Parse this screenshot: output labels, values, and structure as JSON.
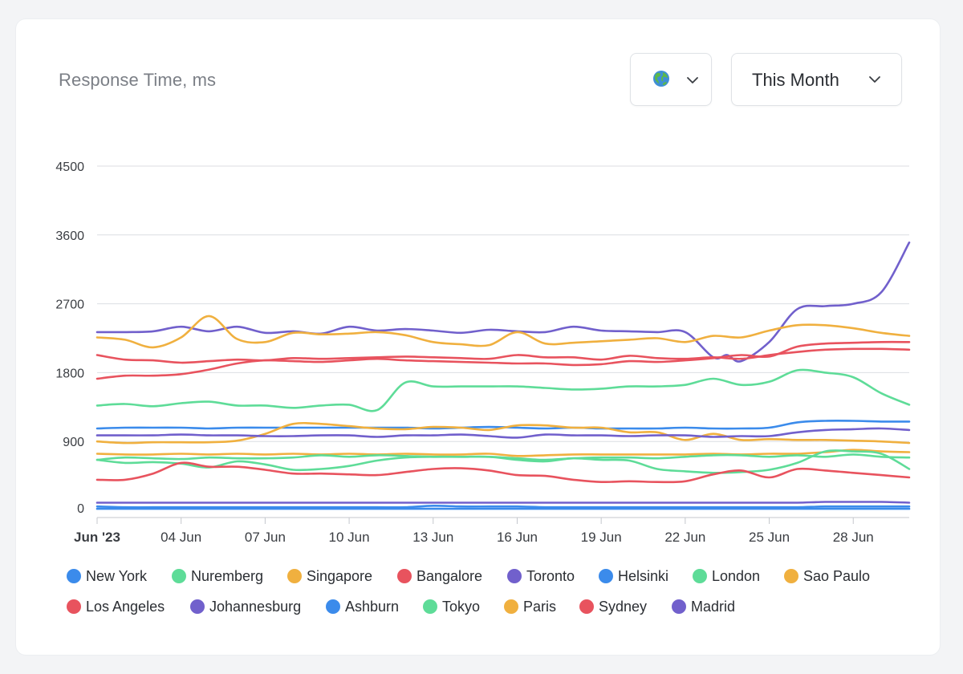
{
  "header": {
    "region_icon": "globe-icon",
    "period_label": "This Month"
  },
  "colors": {
    "blue": "#3b8beb",
    "green": "#5edc98",
    "orange": "#f0b03f",
    "red": "#e8535e",
    "purple": "#7160cc"
  },
  "chart_data": {
    "type": "line",
    "title": "Response Time, ms",
    "y_ticks": [
      "4500",
      "3600",
      "2700",
      "1800",
      "900",
      "0"
    ],
    "y_tick_values": [
      4500,
      3600,
      2700,
      1800,
      900,
      0
    ],
    "ylim": [
      0,
      4500
    ],
    "x_tick_labels": [
      "Jun '23",
      "04 Jun",
      "07 Jun",
      "10 Jun",
      "13 Jun",
      "16 Jun",
      "19 Jun",
      "22 Jun",
      "25 Jun",
      "28 Jun"
    ],
    "x_tick_days": [
      1,
      4,
      7,
      10,
      13,
      16,
      19,
      22,
      25,
      28
    ],
    "x_range_days": [
      1,
      29.999
    ],
    "grid": "horizontal",
    "legend_position": "bottom",
    "legend": [
      {
        "name": "New York",
        "color": "#3b8beb"
      },
      {
        "name": "Nuremberg",
        "color": "#5edc98"
      },
      {
        "name": "Singapore",
        "color": "#f0b03f"
      },
      {
        "name": "Bangalore",
        "color": "#e8535e"
      },
      {
        "name": "Toronto",
        "color": "#7160cc"
      },
      {
        "name": "Helsinki",
        "color": "#3b8beb"
      },
      {
        "name": "London",
        "color": "#5edc98"
      },
      {
        "name": "Sao Paulo",
        "color": "#f0b03f"
      },
      {
        "name": "Los Angeles",
        "color": "#e8535e"
      },
      {
        "name": "Johannesburg",
        "color": "#7160cc"
      },
      {
        "name": "Ashburn",
        "color": "#3b8beb"
      },
      {
        "name": "Tokyo",
        "color": "#5edc98"
      },
      {
        "name": "Paris",
        "color": "#f0b03f"
      },
      {
        "name": "Sydney",
        "color": "#e8535e"
      },
      {
        "name": "Madrid",
        "color": "#7160cc"
      }
    ],
    "series": [
      {
        "color": "#7160cc",
        "x": [
          1,
          2,
          3,
          4,
          5,
          6,
          7,
          8,
          9,
          10,
          11,
          12,
          13,
          14,
          15,
          16,
          17,
          18,
          19,
          20,
          21,
          22,
          23,
          23.5,
          24,
          25,
          26,
          27,
          28,
          29,
          30
        ],
        "y": [
          2330,
          2330,
          2340,
          2400,
          2340,
          2400,
          2320,
          2340,
          2310,
          2400,
          2350,
          2370,
          2350,
          2320,
          2360,
          2340,
          2330,
          2400,
          2350,
          2340,
          2330,
          2330,
          2000,
          2030,
          1950,
          2200,
          2630,
          2670,
          2700,
          2850,
          3500
        ]
      },
      {
        "color": "#f0b03f",
        "x": [
          1,
          2,
          3,
          4,
          5,
          6,
          7,
          8,
          9,
          10,
          11,
          12,
          13,
          14,
          15,
          16,
          17,
          18,
          19,
          20,
          21,
          22,
          23,
          24,
          25,
          26,
          27,
          28,
          29,
          30
        ],
        "y": [
          2260,
          2230,
          2130,
          2260,
          2540,
          2240,
          2200,
          2320,
          2300,
          2310,
          2330,
          2290,
          2200,
          2170,
          2160,
          2330,
          2180,
          2190,
          2210,
          2230,
          2250,
          2200,
          2280,
          2260,
          2350,
          2420,
          2420,
          2380,
          2320,
          2280
        ]
      },
      {
        "color": "#e8535e",
        "x": [
          1,
          2,
          3,
          4,
          5,
          6,
          7,
          8,
          9,
          10,
          11,
          12,
          13,
          14,
          15,
          16,
          17,
          18,
          19,
          20,
          21,
          22,
          23,
          24,
          25,
          26,
          27,
          28,
          29,
          30
        ],
        "y": [
          2030,
          1970,
          1960,
          1930,
          1950,
          1970,
          1960,
          1990,
          1980,
          1990,
          2000,
          2010,
          2000,
          1990,
          1980,
          2030,
          2000,
          2000,
          1970,
          2020,
          1990,
          1980,
          2000,
          1980,
          2030,
          2070,
          2100,
          2110,
          2110,
          2100
        ]
      },
      {
        "color": "#e8535e",
        "x": [
          1,
          2,
          3,
          4,
          5,
          6,
          7,
          8,
          9,
          10,
          11,
          12,
          13,
          14,
          15,
          16,
          17,
          18,
          19,
          20,
          21,
          22,
          23,
          24,
          25,
          26,
          27,
          28,
          29,
          30
        ],
        "y": [
          1720,
          1760,
          1760,
          1780,
          1840,
          1920,
          1960,
          1950,
          1940,
          1960,
          1980,
          1960,
          1950,
          1940,
          1930,
          1920,
          1920,
          1900,
          1910,
          1950,
          1940,
          1960,
          1990,
          2030,
          2010,
          2140,
          2180,
          2190,
          2200,
          2200
        ]
      },
      {
        "color": "#5edc98",
        "x": [
          1,
          2,
          3,
          4,
          5,
          6,
          7,
          8,
          9,
          10,
          11,
          12,
          13,
          14,
          15,
          16,
          17,
          18,
          19,
          20,
          21,
          22,
          23,
          24,
          25,
          26,
          27,
          28,
          29,
          30
        ],
        "y": [
          1370,
          1390,
          1360,
          1400,
          1420,
          1370,
          1370,
          1340,
          1370,
          1380,
          1310,
          1670,
          1620,
          1620,
          1620,
          1620,
          1600,
          1580,
          1590,
          1620,
          1620,
          1640,
          1720,
          1640,
          1680,
          1830,
          1800,
          1740,
          1530,
          1380
        ]
      },
      {
        "color": "#3b8beb",
        "x": [
          1,
          2,
          3,
          4,
          5,
          6,
          7,
          8,
          9,
          10,
          11,
          12,
          13,
          14,
          15,
          16,
          17,
          18,
          19,
          20,
          21,
          22,
          23,
          24,
          25,
          26,
          27,
          28,
          29,
          30
        ],
        "y": [
          1070,
          1080,
          1080,
          1080,
          1070,
          1080,
          1080,
          1080,
          1080,
          1080,
          1080,
          1080,
          1070,
          1080,
          1090,
          1080,
          1070,
          1080,
          1070,
          1070,
          1070,
          1080,
          1070,
          1070,
          1080,
          1150,
          1170,
          1170,
          1160,
          1160
        ]
      },
      {
        "color": "#f0b03f",
        "x": [
          1,
          2,
          3,
          4,
          5,
          6,
          7,
          8,
          9,
          10,
          11,
          12,
          13,
          14,
          15,
          16,
          17,
          18,
          19,
          20,
          21,
          22,
          23,
          24,
          25,
          26,
          27,
          28,
          29,
          30
        ],
        "y": [
          900,
          880,
          890,
          890,
          890,
          910,
          1000,
          1130,
          1130,
          1100,
          1070,
          1060,
          1090,
          1080,
          1050,
          1110,
          1110,
          1080,
          1080,
          1020,
          1020,
          920,
          1000,
          920,
          930,
          920,
          920,
          910,
          900,
          880
        ]
      },
      {
        "color": "#7160cc",
        "x": [
          1,
          2,
          3,
          4,
          5,
          6,
          7,
          8,
          9,
          10,
          11,
          12,
          13,
          14,
          15,
          16,
          17,
          18,
          19,
          20,
          21,
          22,
          23,
          24,
          25,
          26,
          27,
          28,
          29,
          30
        ],
        "y": [
          980,
          980,
          980,
          990,
          980,
          980,
          970,
          970,
          980,
          980,
          960,
          980,
          980,
          990,
          970,
          950,
          990,
          980,
          980,
          970,
          980,
          980,
          960,
          970,
          970,
          1020,
          1050,
          1060,
          1070,
          1050
        ]
      },
      {
        "color": "#f0b03f",
        "x": [
          1,
          2,
          3,
          4,
          5,
          6,
          7,
          8,
          9,
          10,
          11,
          12,
          13,
          14,
          15,
          16,
          17,
          18,
          19,
          20,
          21,
          22,
          23,
          24,
          25,
          26,
          27,
          28,
          29,
          30
        ],
        "y": [
          740,
          730,
          730,
          740,
          730,
          740,
          730,
          740,
          730,
          740,
          730,
          740,
          730,
          730,
          740,
          710,
          720,
          730,
          730,
          730,
          730,
          730,
          740,
          730,
          740,
          740,
          760,
          790,
          770,
          760
        ]
      },
      {
        "color": "#5edc98",
        "x": [
          1,
          2,
          3,
          4,
          5,
          6,
          7,
          8,
          9,
          10,
          11,
          12,
          13,
          14,
          15,
          16,
          17,
          18,
          19,
          20,
          21,
          22,
          23,
          24,
          25,
          26,
          27,
          28,
          29,
          30
        ],
        "y": [
          660,
          690,
          680,
          670,
          690,
          680,
          680,
          690,
          720,
          700,
          720,
          710,
          700,
          700,
          700,
          680,
          660,
          680,
          690,
          690,
          680,
          700,
          720,
          720,
          700,
          720,
          700,
          730,
          700,
          690
        ]
      },
      {
        "color": "#5edc98",
        "x": [
          1,
          2,
          3,
          4,
          5,
          6,
          7,
          8,
          9,
          10,
          11,
          12,
          13,
          14,
          15,
          16,
          17,
          18,
          19,
          20,
          21,
          22,
          23,
          24,
          25,
          26,
          27,
          28,
          29,
          30
        ],
        "y": [
          660,
          620,
          630,
          610,
          560,
          640,
          600,
          530,
          540,
          580,
          650,
          690,
          700,
          700,
          700,
          660,
          640,
          680,
          660,
          650,
          540,
          510,
          490,
          500,
          530,
          620,
          770,
          770,
          740,
          540
        ]
      },
      {
        "color": "#e8535e",
        "x": [
          1,
          2,
          3,
          4,
          5,
          6,
          7,
          8,
          9,
          10,
          11,
          12,
          13,
          14,
          15,
          16,
          17,
          18,
          19,
          20,
          21,
          22,
          23,
          24,
          25,
          26,
          27,
          28,
          29,
          30
        ],
        "y": [
          400,
          400,
          480,
          620,
          570,
          570,
          530,
          480,
          480,
          470,
          460,
          500,
          540,
          550,
          520,
          460,
          450,
          400,
          370,
          380,
          370,
          380,
          470,
          520,
          430,
          540,
          520,
          490,
          460,
          430
        ]
      },
      {
        "color": "#7160cc",
        "x": [
          1,
          2,
          3,
          4,
          5,
          6,
          7,
          8,
          9,
          10,
          11,
          12,
          13,
          14,
          15,
          16,
          17,
          18,
          19,
          20,
          21,
          22,
          23,
          24,
          25,
          26,
          27,
          28,
          29,
          30
        ],
        "y": [
          100,
          100,
          100,
          100,
          100,
          100,
          100,
          100,
          100,
          100,
          100,
          100,
          100,
          100,
          100,
          100,
          100,
          100,
          100,
          100,
          100,
          100,
          100,
          100,
          100,
          100,
          110,
          110,
          110,
          100
        ]
      },
      {
        "color": "#3b8beb",
        "x": [
          1,
          2,
          3,
          4,
          5,
          6,
          7,
          8,
          9,
          10,
          11,
          12,
          13,
          14,
          15,
          16,
          17,
          18,
          19,
          20,
          21,
          22,
          23,
          24,
          25,
          26,
          27,
          28,
          29,
          30
        ],
        "y": [
          50,
          40,
          40,
          40,
          40,
          40,
          40,
          40,
          40,
          40,
          40,
          40,
          60,
          50,
          50,
          50,
          40,
          40,
          40,
          40,
          40,
          40,
          40,
          40,
          40,
          40,
          50,
          50,
          50,
          50
        ]
      },
      {
        "color": "#3b8beb",
        "x": [
          1,
          2,
          3,
          4,
          5,
          6,
          7,
          8,
          9,
          10,
          11,
          12,
          13,
          14,
          15,
          16,
          17,
          18,
          19,
          20,
          21,
          22,
          23,
          24,
          25,
          26,
          27,
          28,
          29,
          30
        ],
        "y": [
          20,
          20,
          20,
          20,
          20,
          20,
          20,
          20,
          20,
          20,
          20,
          20,
          20,
          20,
          20,
          20,
          20,
          20,
          20,
          20,
          20,
          20,
          20,
          20,
          20,
          20,
          20,
          20,
          20,
          20
        ]
      }
    ]
  }
}
